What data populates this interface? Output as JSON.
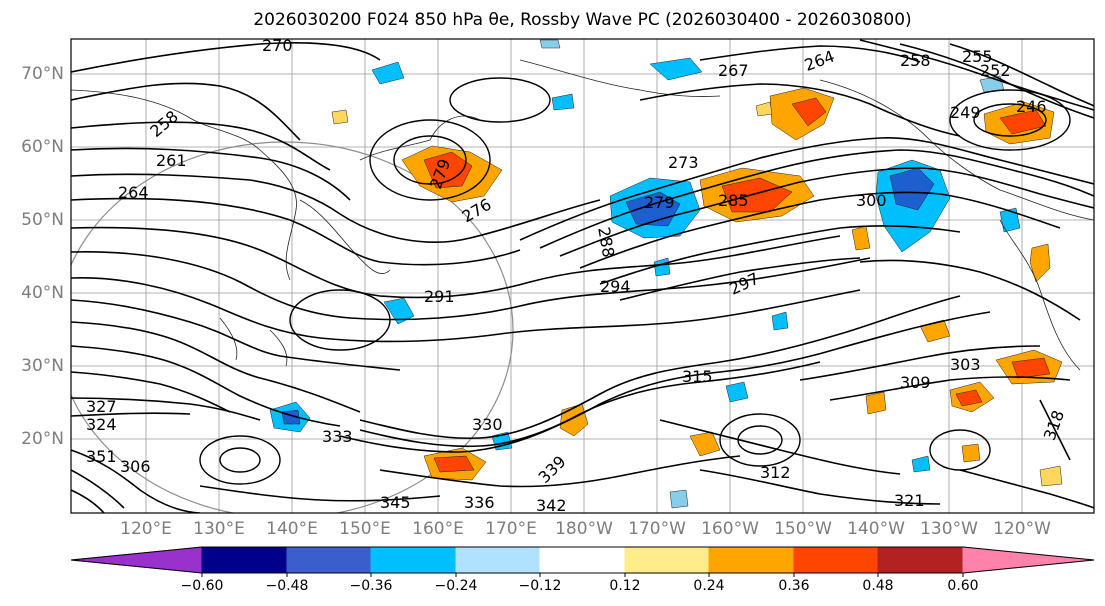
{
  "title": "2026030200 F024 850 hPa θe, Rossby Wave PC (2026030400 - 2026030800)",
  "lat_labels": [
    "70°N",
    "60°N",
    "50°N",
    "40°N",
    "30°N",
    "20°N"
  ],
  "lon_labels": [
    "120°E",
    "130°E",
    "140°E",
    "150°E",
    "160°E",
    "170°E",
    "180°W",
    "170°W",
    "160°W",
    "150°W",
    "140°W",
    "130°W",
    "120°W"
  ],
  "colorbar": {
    "ticks": [
      "−0.60",
      "−0.48",
      "−0.36",
      "−0.24",
      "−0.12",
      "0.12",
      "0.24",
      "0.36",
      "0.48",
      "0.60"
    ],
    "colors": [
      "#9932cc",
      "#00008b",
      "#3a5fcd",
      "#00bfff",
      "#b0e2ff",
      "#ffffff",
      "#ffec8b",
      "#ffa500",
      "#ff4500",
      "#b22222",
      "#ff82ab"
    ]
  },
  "contour_labels": [
    "270",
    "258",
    "264",
    "267",
    "261",
    "264",
    "258",
    "255",
    "252",
    "249",
    "246",
    "279",
    "276",
    "273",
    "279",
    "285",
    "300",
    "288",
    "294",
    "297",
    "291",
    "303",
    "309",
    "315",
    "318",
    "333",
    "339",
    "342",
    "345",
    "336",
    "330",
    "327",
    "324",
    "321",
    "306",
    "312",
    "351"
  ],
  "anomaly_colors": {
    "positive_light": "#ffd75a",
    "positive": "#ffa500",
    "positive_strong": "#ff4500",
    "negative_light": "#87ceeb",
    "negative": "#00bfff",
    "negative_strong": "#1e5fd0"
  }
}
